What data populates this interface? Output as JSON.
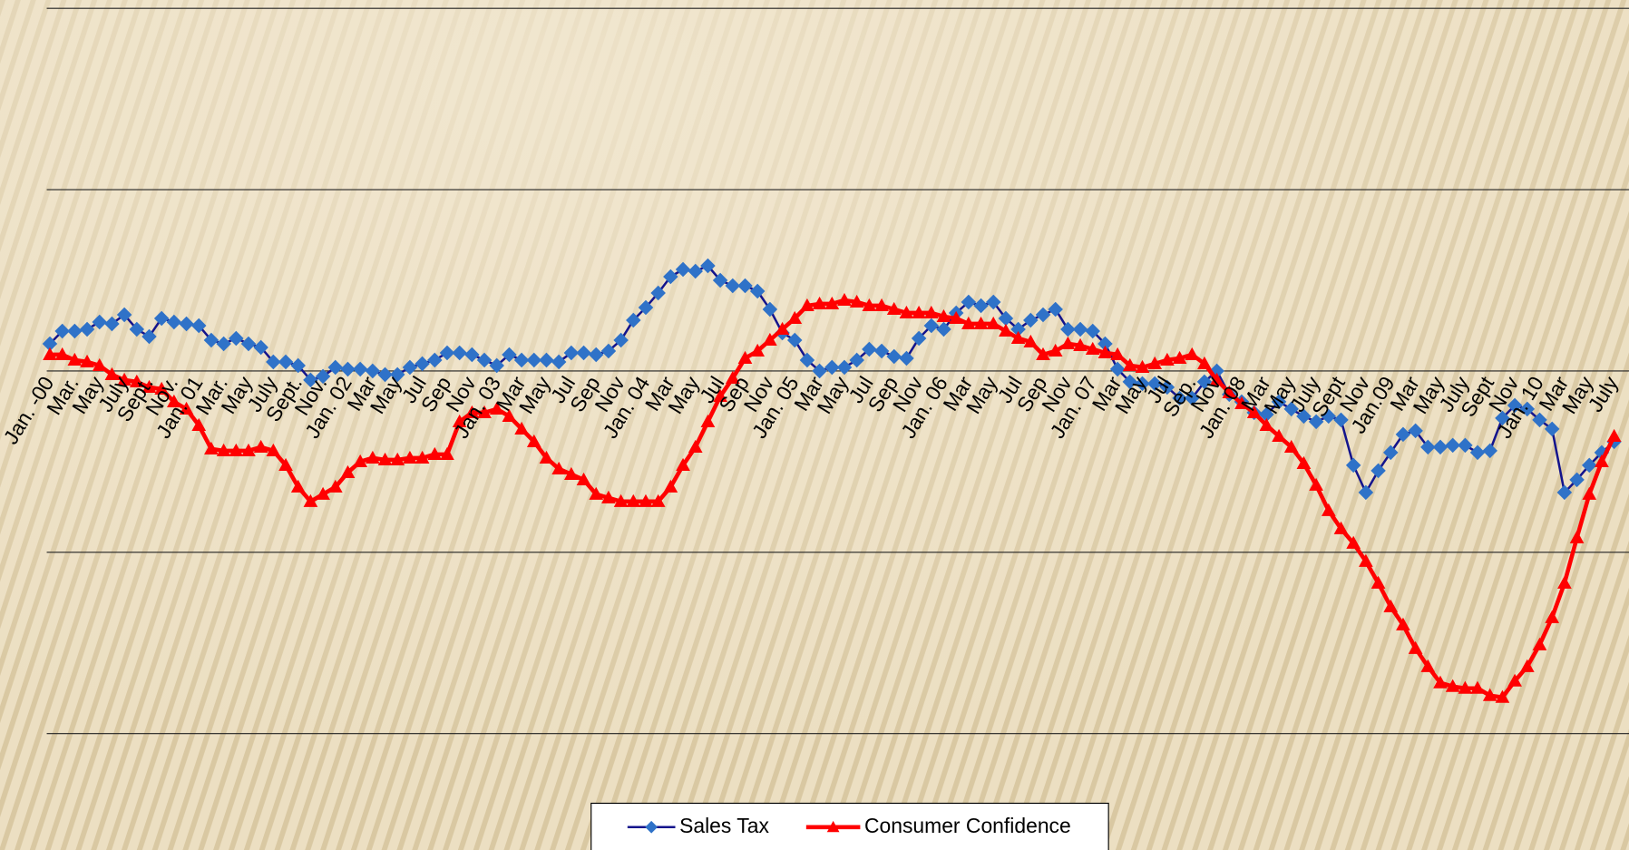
{
  "chart_data": {
    "type": "line",
    "categories": [
      "Jan. -00",
      null,
      "Mar.",
      null,
      "May",
      null,
      "July",
      null,
      "Sept.",
      null,
      "Nov.",
      null,
      "Jan. 01",
      null,
      "Mar.",
      null,
      "May",
      null,
      "July",
      null,
      "Sept.",
      null,
      "Nov.",
      null,
      "Jan. 02",
      null,
      "Mar",
      null,
      "May",
      null,
      "Jul",
      null,
      "Sep",
      null,
      "Nov",
      null,
      "Jan. 03",
      null,
      "Mar",
      null,
      "May",
      null,
      "Jul",
      null,
      "Sep",
      null,
      "Nov",
      null,
      "Jan. 04",
      null,
      "Mar",
      null,
      "May",
      null,
      "Jul",
      null,
      "Sep",
      null,
      "Nov",
      null,
      "Jan. 05",
      null,
      "Mar",
      null,
      "May",
      null,
      "Jul",
      null,
      "Sep",
      null,
      "Nov",
      null,
      "Jan. 06",
      null,
      "Mar",
      null,
      "May",
      null,
      "Jul",
      null,
      "Sep",
      null,
      "Nov",
      null,
      "Jan. 07",
      null,
      "Mar",
      null,
      "May",
      null,
      "Jul",
      null,
      "Sep.",
      null,
      "Nov",
      null,
      "Jan. 08",
      null,
      "Mar",
      null,
      "May",
      null,
      "July",
      null,
      "Sept",
      null,
      "Nov",
      null,
      "Jan.09",
      null,
      "Mar",
      null,
      "May",
      null,
      "July",
      null,
      "Sept",
      null,
      "Nov",
      null,
      "Jan. 10",
      null,
      "Mar",
      null,
      "May",
      null,
      "July"
    ],
    "series": [
      {
        "name": "Sales Tax",
        "color": "#14148c",
        "marker_color": "#2f72c8",
        "marker": "diamond",
        "values": [
          0.15,
          0.22,
          0.22,
          0.23,
          0.27,
          0.26,
          0.31,
          0.23,
          0.19,
          0.29,
          0.27,
          0.26,
          0.25,
          0.17,
          0.15,
          0.18,
          0.15,
          0.13,
          0.05,
          0.05,
          0.03,
          -0.05,
          -0.03,
          0.02,
          0.01,
          0.01,
          0,
          -0.02,
          -0.02,
          0.02,
          0.04,
          0.06,
          0.1,
          0.1,
          0.09,
          0.06,
          0.03,
          0.09,
          0.06,
          0.06,
          0.06,
          0.05,
          0.1,
          0.1,
          0.09,
          0.11,
          0.17,
          0.28,
          0.35,
          0.43,
          0.52,
          0.56,
          0.55,
          0.58,
          0.5,
          0.47,
          0.47,
          0.44,
          0.34,
          0.21,
          0.17,
          0.06,
          0,
          0.02,
          0.02,
          0.06,
          0.12,
          0.11,
          0.08,
          0.07,
          0.18,
          0.25,
          0.23,
          0.32,
          0.38,
          0.36,
          0.38,
          0.29,
          0.23,
          0.28,
          0.31,
          0.34,
          0.23,
          0.23,
          0.22,
          0.15,
          0.01,
          -0.06,
          -0.07,
          -0.07,
          -0.09,
          -0.15,
          -0.15,
          -0.06,
          0,
          -0.13,
          -0.17,
          -0.23,
          -0.24,
          -0.17,
          -0.21,
          -0.25,
          -0.28,
          -0.25,
          -0.27,
          -0.52,
          -0.67,
          -0.55,
          -0.45,
          -0.35,
          -0.33,
          -0.42,
          -0.42,
          -0.41,
          -0.41,
          -0.45,
          -0.44,
          -0.26,
          -0.19,
          -0.21,
          -0.27,
          -0.32,
          -0.67,
          -0.6,
          -0.52,
          -0.45,
          -0.39
        ]
      },
      {
        "name": "Consumer Confidence",
        "color": "#ff0000",
        "marker_color": "#ff0000",
        "marker": "triangle",
        "values": [
          0.09,
          0.09,
          0.06,
          0.05,
          0.03,
          -0.02,
          -0.05,
          -0.06,
          -0.09,
          -0.1,
          -0.17,
          -0.21,
          -0.3,
          -0.43,
          -0.44,
          -0.44,
          -0.44,
          -0.42,
          -0.44,
          -0.52,
          -0.64,
          -0.72,
          -0.68,
          -0.64,
          -0.56,
          -0.5,
          -0.48,
          -0.49,
          -0.49,
          -0.48,
          -0.48,
          -0.46,
          -0.46,
          -0.28,
          -0.23,
          -0.23,
          -0.21,
          -0.25,
          -0.32,
          -0.39,
          -0.48,
          -0.54,
          -0.57,
          -0.6,
          -0.68,
          -0.7,
          -0.72,
          -0.72,
          -0.72,
          -0.72,
          -0.64,
          -0.52,
          -0.42,
          -0.28,
          -0.14,
          -0.04,
          0.07,
          0.11,
          0.17,
          0.23,
          0.29,
          0.36,
          0.37,
          0.37,
          0.39,
          0.38,
          0.36,
          0.36,
          0.34,
          0.32,
          0.32,
          0.32,
          0.3,
          0.29,
          0.26,
          0.26,
          0.26,
          0.22,
          0.18,
          0.16,
          0.09,
          0.11,
          0.15,
          0.14,
          0.12,
          0.1,
          0.09,
          0.03,
          0.02,
          0.04,
          0.06,
          0.07,
          0.09,
          0.04,
          -0.05,
          -0.12,
          -0.18,
          -0.23,
          -0.3,
          -0.36,
          -0.42,
          -0.51,
          -0.63,
          -0.77,
          -0.87,
          -0.95,
          -1.05,
          -1.17,
          -1.3,
          -1.4,
          -1.53,
          -1.63,
          -1.72,
          -1.74,
          -1.75,
          -1.75,
          -1.79,
          -1.8,
          -1.71,
          -1.63,
          -1.51,
          -1.36,
          -1.17,
          -0.92,
          -0.68,
          -0.5,
          -0.36
        ]
      }
    ],
    "ylim": [
      -2,
      2
    ],
    "yticks": [
      -2,
      -1,
      0,
      1,
      2
    ],
    "grid": true,
    "legend": "bottom"
  }
}
